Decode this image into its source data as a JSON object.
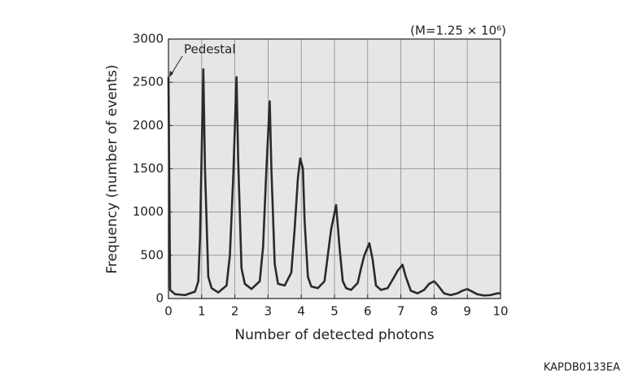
{
  "chart_data": {
    "type": "line",
    "xlabel": "Number of detected photons",
    "ylabel": "Frequency (number of events)",
    "annotations": [
      "Pedestal",
      "(M=1.25 × 10⁶)",
      "KAPDB0133EA"
    ],
    "xlim": [
      0,
      10
    ],
    "ylim": [
      0,
      3000
    ],
    "xticks": [
      0,
      1,
      2,
      3,
      4,
      5,
      6,
      7,
      8,
      9,
      10
    ],
    "yticks": [
      0,
      500,
      1000,
      1500,
      2000,
      2500,
      3000
    ],
    "grid": true,
    "series": [
      {
        "color": "#2a2a2a",
        "x": [
          0,
          0.05,
          0.2,
          0.5,
          0.8,
          0.9,
          0.95,
          1.05,
          1.1,
          1.2,
          1.3,
          1.5,
          1.75,
          1.85,
          1.95,
          2.05,
          2.1,
          2.2,
          2.3,
          2.5,
          2.75,
          2.85,
          2.95,
          3.05,
          3.1,
          3.2,
          3.3,
          3.5,
          3.7,
          3.8,
          3.9,
          3.97,
          4.05,
          4.1,
          4.2,
          4.3,
          4.5,
          4.7,
          4.8,
          4.9,
          5.05,
          5.15,
          5.25,
          5.35,
          5.5,
          5.7,
          5.8,
          5.9,
          6.05,
          6.15,
          6.25,
          6.4,
          6.6,
          6.8,
          6.9,
          7.05,
          7.15,
          7.3,
          7.5,
          7.7,
          7.85,
          8.0,
          8.1,
          8.3,
          8.5,
          8.7,
          8.85,
          9.0,
          9.1,
          9.3,
          9.5,
          9.7,
          9.9,
          10
        ],
        "values": [
          2560,
          100,
          50,
          40,
          80,
          200,
          700,
          2650,
          1500,
          250,
          120,
          70,
          150,
          500,
          1400,
          2560,
          1600,
          350,
          170,
          110,
          200,
          600,
          1500,
          2280,
          1500,
          400,
          170,
          150,
          300,
          800,
          1400,
          1620,
          1500,
          900,
          250,
          140,
          120,
          200,
          500,
          800,
          1080,
          600,
          200,
          120,
          100,
          180,
          350,
          500,
          640,
          450,
          150,
          100,
          120,
          250,
          320,
          390,
          250,
          90,
          60,
          100,
          170,
          200,
          160,
          60,
          40,
          60,
          90,
          110,
          90,
          50,
          35,
          40,
          60,
          60
        ]
      }
    ]
  }
}
